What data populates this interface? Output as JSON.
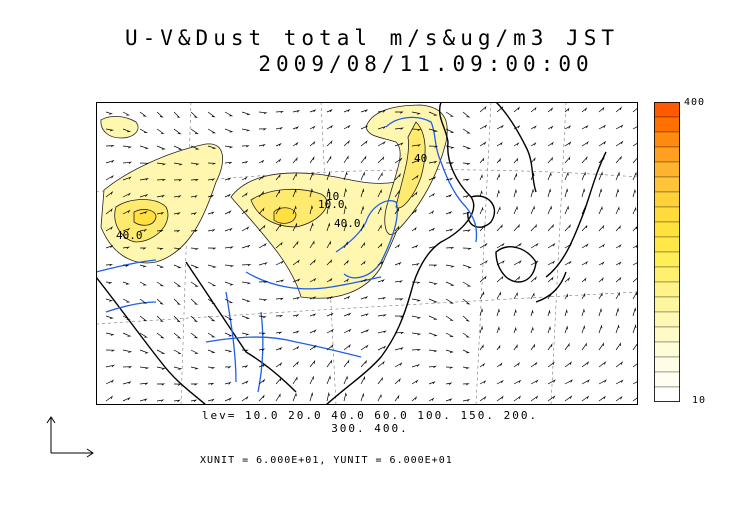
{
  "title": {
    "line1": "U-V&Dust total m/s&ug/m3 JST",
    "line2": "2009/08/11.09:00:00"
  },
  "colorbar": {
    "max_label": "400",
    "min_label": "10",
    "colors": [
      "#ff5a00",
      "#ff7000",
      "#ff8a10",
      "#ffa020",
      "#ffb430",
      "#ffc43a",
      "#ffd23a",
      "#ffdc3c",
      "#ffe23c",
      "#ffe848",
      "#ffee58",
      "#fff070",
      "#fff38a",
      "#fff6a0",
      "#fff8b4",
      "#fffac8",
      "#fffcd8",
      "#fffde6",
      "#fffef0",
      "#ffffff"
    ]
  },
  "contour_levels": {
    "line1": "lev= 10.0 20.0 40.0 60.0 100. 150. 200.",
    "line2": "300. 400."
  },
  "contour_labels": [
    "40.0",
    "10.0",
    "40.0",
    "10",
    "40"
  ],
  "units_text": "XUNIT = 6.000E+01, YUNIT = 6.000E+01",
  "colors": {
    "river": "#1e5fe6",
    "coast": "#000000",
    "dust_low": "#fff6b0",
    "dust_mid": "#ffea70",
    "dust_high": "#ffe040"
  },
  "icons": [
    "reference-vector-arrow-icon"
  ]
}
